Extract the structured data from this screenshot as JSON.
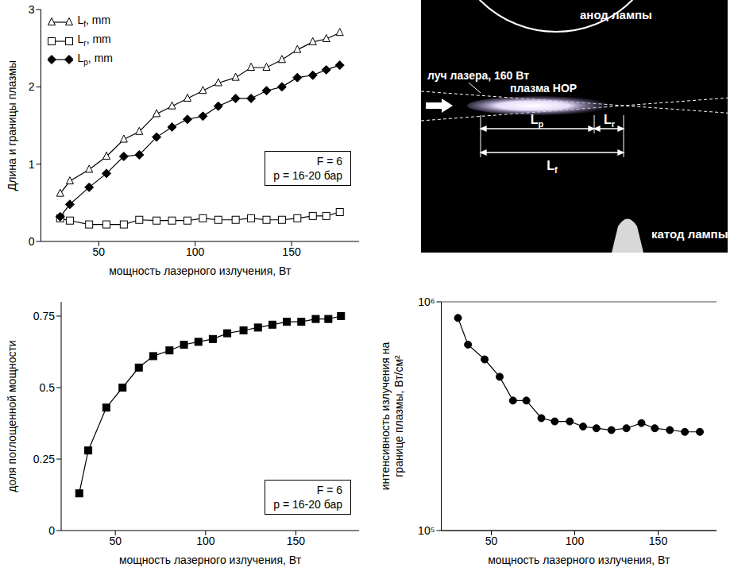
{
  "chart_data": [
    {
      "type": "line",
      "y_label": "Длина и границы плазмы",
      "x_label": "мощность лазерного излучения, Вт",
      "xlim": [
        20,
        185
      ],
      "xticks": [
        50,
        100,
        150
      ],
      "ylim": [
        0,
        3
      ],
      "yticks": [
        0,
        1,
        2,
        3
      ],
      "legend": "upper left",
      "annotations": [
        "F = 6",
        "p = 16-20 бар"
      ],
      "x": [
        30,
        35,
        45,
        54,
        63,
        71,
        80,
        88,
        96,
        104,
        112,
        121,
        129,
        137,
        145,
        153,
        161,
        168,
        175
      ],
      "series": [
        {
          "name": "Lf, mm",
          "color": "#000000",
          "marker": "open_triangle",
          "values": [
            0.62,
            0.78,
            0.93,
            1.1,
            1.32,
            1.42,
            1.65,
            1.75,
            1.85,
            1.95,
            2.05,
            2.12,
            2.25,
            2.25,
            2.35,
            2.48,
            2.58,
            2.62,
            2.7
          ]
        },
        {
          "name": "Lr, mm",
          "color": "#000000",
          "marker": "open_square",
          "values": [
            0.3,
            0.27,
            0.22,
            0.22,
            0.22,
            0.28,
            0.27,
            0.27,
            0.27,
            0.3,
            0.28,
            0.28,
            0.3,
            0.28,
            0.28,
            0.3,
            0.33,
            0.33,
            0.38
          ]
        },
        {
          "name": "Lp, mm",
          "color": "#000000",
          "marker": "filled_diamond",
          "values": [
            0.32,
            0.48,
            0.7,
            0.88,
            1.1,
            1.12,
            1.35,
            1.48,
            1.58,
            1.62,
            1.75,
            1.85,
            1.85,
            1.95,
            2.0,
            2.12,
            2.15,
            2.22,
            2.28
          ]
        }
      ]
    },
    {
      "type": "line",
      "y_label": "доля поглощенной мощности",
      "x_label": "мощность лазерного излучения, Вт",
      "xlim": [
        20,
        185
      ],
      "xticks": [
        50,
        100,
        150
      ],
      "ylim": [
        0,
        0.8
      ],
      "yticks": [
        0,
        0.25,
        0.5,
        0.75
      ],
      "annotations": [
        "F = 6",
        "p = 16-20 бар"
      ],
      "x": [
        30,
        35,
        45,
        54,
        63,
        71,
        80,
        88,
        96,
        104,
        112,
        121,
        129,
        137,
        145,
        153,
        161,
        168,
        175
      ],
      "series": [
        {
          "color": "#000000",
          "marker": "filled_square",
          "values": [
            0.13,
            0.28,
            0.43,
            0.5,
            0.57,
            0.61,
            0.63,
            0.65,
            0.66,
            0.67,
            0.69,
            0.7,
            0.71,
            0.72,
            0.73,
            0.73,
            0.74,
            0.74,
            0.75
          ]
        }
      ]
    },
    {
      "type": "line",
      "log": "y",
      "grid": true,
      "y_label": "интенсивность излучения на границе плазмы, Вт/см²",
      "x_label": "мощность лазерного излучения, Вт",
      "xlim": [
        20,
        185
      ],
      "xticks": [
        50,
        100,
        150
      ],
      "ylim": [
        100000,
        1000000
      ],
      "yticks": [
        {
          "value": 100000,
          "label": "10⁵"
        },
        {
          "value": 1000000,
          "label": "10⁶"
        }
      ],
      "x": [
        30,
        36,
        46,
        55,
        63,
        71,
        80,
        88,
        97,
        105,
        113,
        122,
        131,
        140,
        148,
        157,
        166,
        175
      ],
      "series": [
        {
          "color": "#000000",
          "marker": "filled_circle",
          "values": [
            850000,
            650000,
            560000,
            470000,
            370000,
            370000,
            310000,
            300000,
            300000,
            285000,
            280000,
            275000,
            280000,
            295000,
            280000,
            275000,
            270000,
            270000
          ]
        }
      ]
    }
  ],
  "diagram": {
    "anode": "анод лампы",
    "cathode": "катод лампы",
    "beam": "луч лазера, 160 Вт",
    "plasma": "плазма НОР",
    "dimensions": [
      "Lp",
      "Lr",
      "Lf"
    ]
  }
}
